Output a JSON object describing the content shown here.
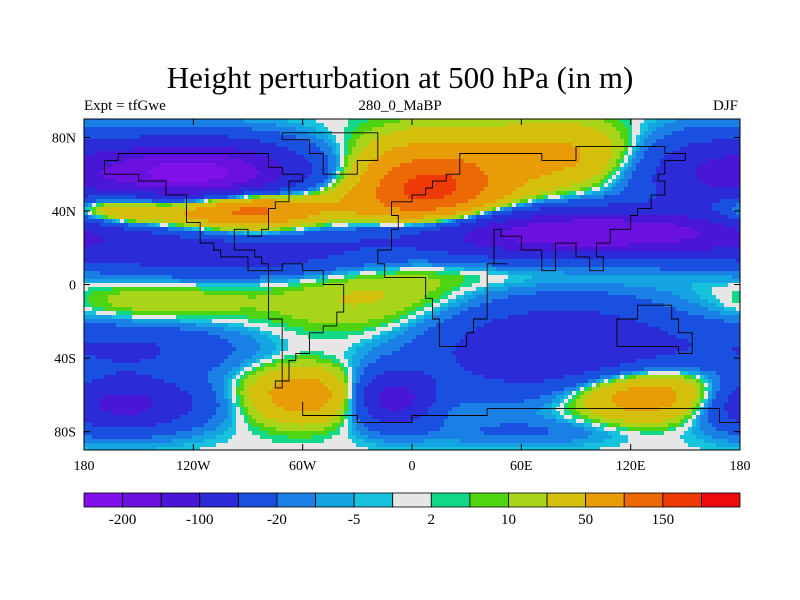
{
  "chart_data": {
    "type": "heatmap",
    "title": "Height perturbation at 500 hPa (in m)",
    "left_subtitle": "Expt = tfGwe",
    "center_subtitle": "280_0_MaBP",
    "right_subtitle": "DJF",
    "xlim": [
      -180,
      180
    ],
    "ylim": [
      -90,
      90
    ],
    "x_ticks": [
      {
        "value": -180,
        "label": "180"
      },
      {
        "value": -120,
        "label": "120W"
      },
      {
        "value": -60,
        "label": "60W"
      },
      {
        "value": 0,
        "label": "0"
      },
      {
        "value": 60,
        "label": "60E"
      },
      {
        "value": 120,
        "label": "120E"
      },
      {
        "value": 180,
        "label": "180"
      }
    ],
    "y_ticks": [
      {
        "value": 80,
        "label": "80N"
      },
      {
        "value": 40,
        "label": "40N"
      },
      {
        "value": 0,
        "label": "0"
      },
      {
        "value": -40,
        "label": "40S"
      },
      {
        "value": -80,
        "label": "80S"
      }
    ],
    "colorbar": {
      "colors": [
        "#7f10ea",
        "#6a10df",
        "#4a16d6",
        "#2b2bd8",
        "#1a50e0",
        "#1a80e6",
        "#14a4e2",
        "#17c2dc",
        "#e6e6e6",
        "#12d888",
        "#4fd412",
        "#a8d41a",
        "#d4c00c",
        "#e89c08",
        "#ec6a06",
        "#ee3a06",
        "#ee0a0a"
      ],
      "labels": [
        {
          "boundary": 1,
          "text": "-200"
        },
        {
          "boundary": 3,
          "text": "-100"
        },
        {
          "boundary": 5,
          "text": "-20"
        },
        {
          "boundary": 7,
          "text": "-5"
        },
        {
          "boundary": 9,
          "text": "2"
        },
        {
          "boundary": 11,
          "text": "10"
        },
        {
          "boundary": 13,
          "text": "50"
        },
        {
          "boundary": 15,
          "text": "150"
        }
      ]
    },
    "field_features": [
      {
        "lon": -120,
        "lat": 60,
        "sigma_lon": 40,
        "sigma_lat": 12,
        "amp": -230
      },
      {
        "lon": -110,
        "lat": 40,
        "sigma_lon": 55,
        "sigma_lat": 8,
        "amp": 110
      },
      {
        "lon": -90,
        "lat": 42,
        "sigma_lon": 20,
        "sigma_lat": 6,
        "amp": 60
      },
      {
        "lon": -165,
        "lat": 40,
        "sigma_lon": 18,
        "sigma_lat": 6,
        "amp": 50
      },
      {
        "lon": 10,
        "lat": 52,
        "sigma_lon": 28,
        "sigma_lat": 16,
        "amp": 170
      },
      {
        "lon": 80,
        "lat": 70,
        "sigma_lon": 30,
        "sigma_lat": 12,
        "amp": 60
      },
      {
        "lon": 160,
        "lat": 60,
        "sigma_lon": 30,
        "sigma_lat": 15,
        "amp": -80
      },
      {
        "lon": 95,
        "lat": 28,
        "sigma_lon": 80,
        "sigma_lat": 9,
        "amp": -200
      },
      {
        "lon": -100,
        "lat": 15,
        "sigma_lon": 55,
        "sigma_lat": 8,
        "amp": -70
      },
      {
        "lon": 70,
        "lat": 5,
        "sigma_lon": 60,
        "sigma_lat": 5,
        "amp": 8
      },
      {
        "lon": -20,
        "lat": -8,
        "sigma_lon": 40,
        "sigma_lat": 15,
        "amp": 25
      },
      {
        "lon": -140,
        "lat": -10,
        "sigma_lon": 35,
        "sigma_lat": 8,
        "amp": 20
      },
      {
        "lon": 80,
        "lat": -35,
        "sigma_lon": 50,
        "sigma_lat": 18,
        "amp": -100
      },
      {
        "lon": -150,
        "lat": -35,
        "sigma_lon": 40,
        "sigma_lat": 10,
        "amp": -50
      },
      {
        "lon": -160,
        "lat": -65,
        "sigma_lon": 30,
        "sigma_lat": 10,
        "amp": -120
      },
      {
        "lon": -60,
        "lat": -60,
        "sigma_lon": 20,
        "sigma_lat": 10,
        "amp": 80
      },
      {
        "lon": -10,
        "lat": -62,
        "sigma_lon": 15,
        "sigma_lat": 10,
        "amp": -120
      },
      {
        "lon": 130,
        "lat": -60,
        "sigma_lon": 30,
        "sigma_lat": 10,
        "amp": 100
      },
      {
        "lon": 60,
        "lat": -80,
        "sigma_lon": 40,
        "sigma_lat": 5,
        "amp": -20
      }
    ]
  }
}
